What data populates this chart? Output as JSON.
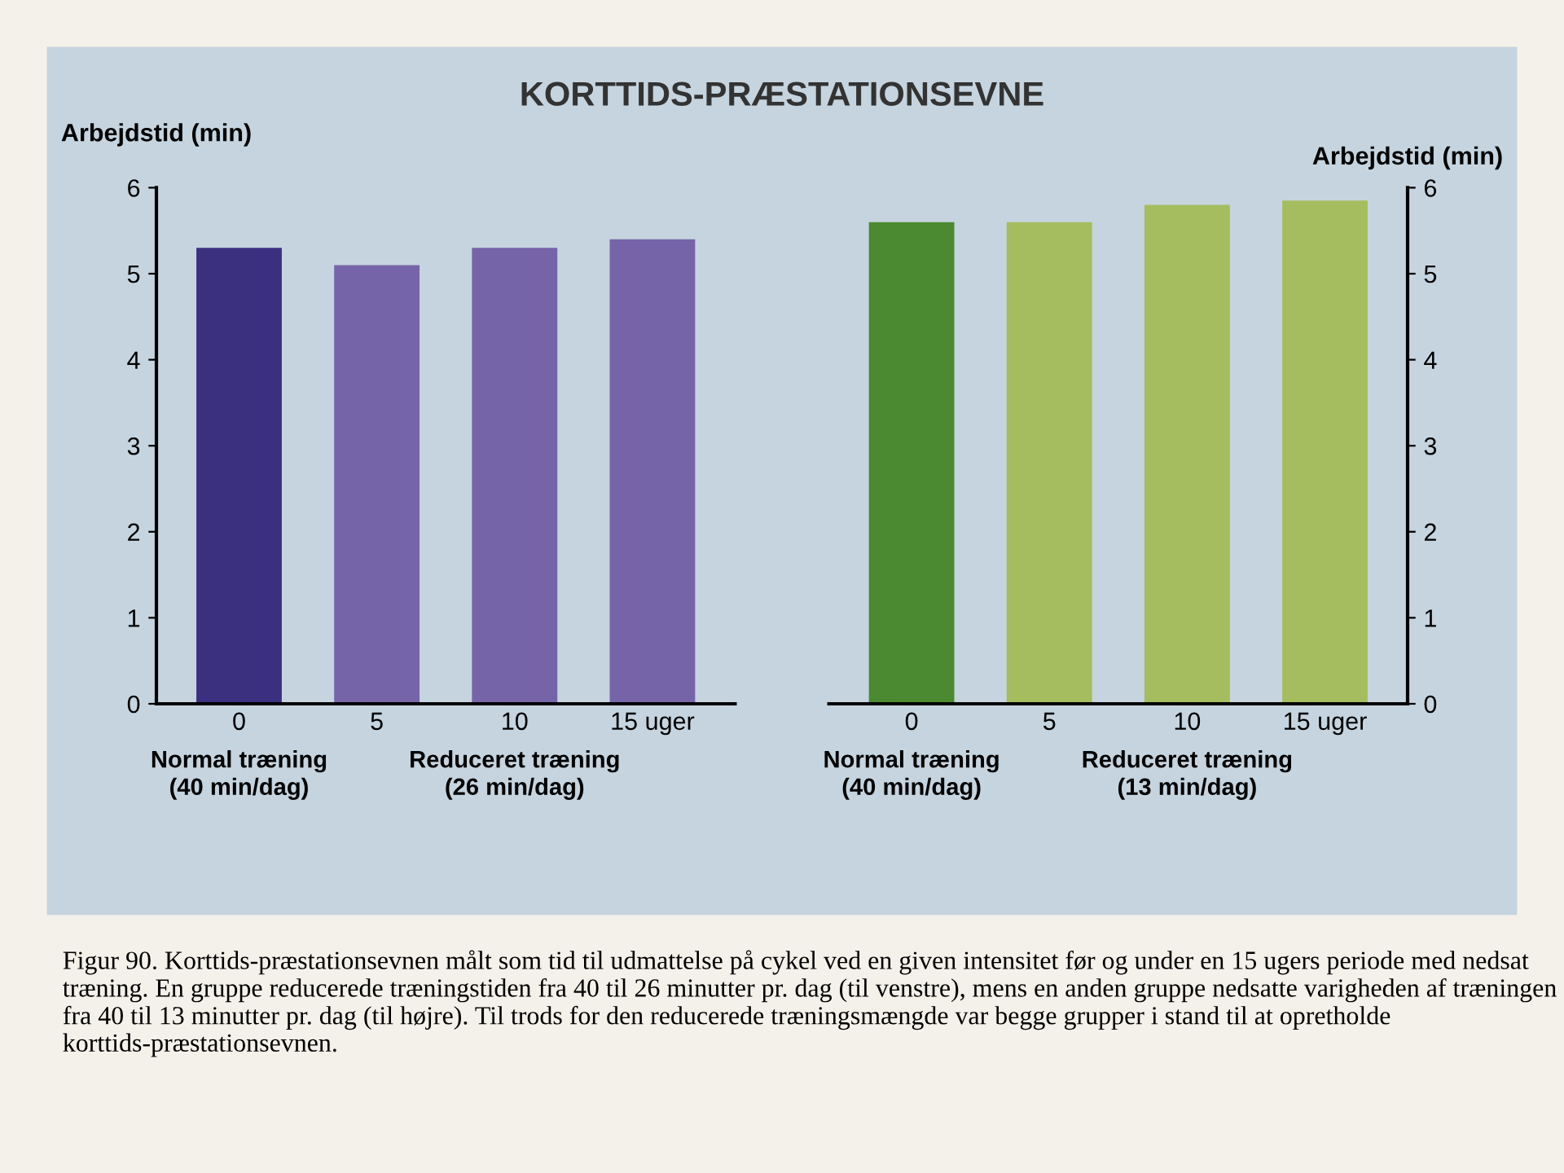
{
  "chart_data": [
    {
      "type": "bar",
      "title": "KORTTIDS-PRÆSTATIONSEVNE",
      "ylabel": "Arbejdstid (min)",
      "categories": [
        "0",
        "5",
        "10",
        "15 uger"
      ],
      "values": [
        5.3,
        5.1,
        5.3,
        5.4
      ],
      "colors": [
        "#3b3080",
        "#7565a8",
        "#7565a8",
        "#7565a8"
      ],
      "ylim": [
        0,
        6
      ],
      "yticks": [
        0,
        1,
        2,
        3,
        4,
        5,
        6
      ],
      "grid": false,
      "tick_labels": "xy",
      "annotations": [
        "Normal træning\n(40 min/dag)",
        "Reduceret træning\n(26 min/dag)",
        "Figur 90. Korttids-præstationsevnen målt som tid til udmattelse på cykel ved en given intensitet før og under en 15 ugers periode med nedsat træning. En gruppe reducerede træningstiden fra 40 til 26 minutter pr. dag (til venstre), mens en anden gruppe nedsatte varigheden af træningen fra 40 til 13 minutter pr. dag (til højre). Til trods for den reducerede træningsmængde var begge grupper i stand til at opretholde korttids-præstationsevnen."
      ]
    },
    {
      "type": "bar",
      "ylabel": "Arbejdstid (min)",
      "categories": [
        "0",
        "5",
        "10",
        "15 uger"
      ],
      "values": [
        5.6,
        5.6,
        5.8,
        5.85
      ],
      "colors": [
        "#4b8a30",
        "#a5bd5e",
        "#a5bd5e",
        "#a5bd5e"
      ],
      "ylim": [
        0,
        6
      ],
      "yticks": [
        0,
        1,
        2,
        3,
        4,
        5,
        6
      ],
      "grid": false,
      "tick_labels": "xy",
      "annotations": [
        "Normal træning\n(40 min/dag)",
        "Reduceret træning\n(13 min/dag)"
      ]
    }
  ]
}
